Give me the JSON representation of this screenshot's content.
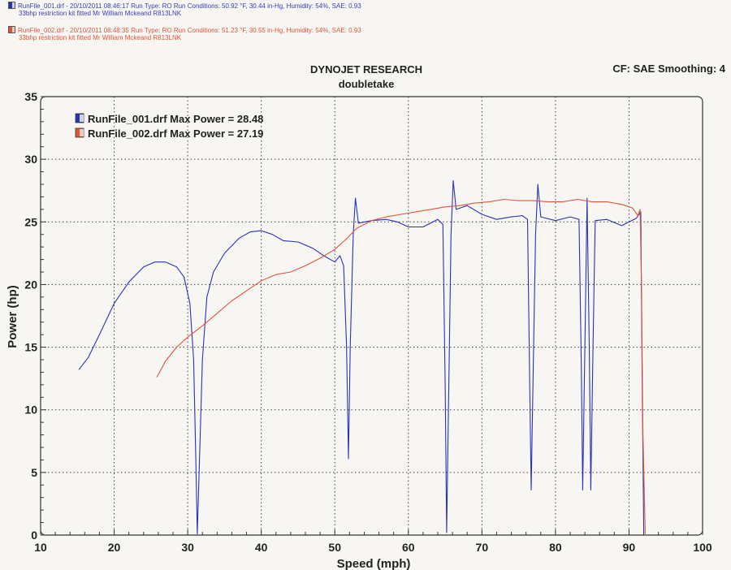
{
  "runs": [
    {
      "line1": "RunFile_001.drf - 20/10/2011 08:46:17  Run Type: RO  Run Conditions: 50.92 °F, 30.44 in-Hg,  Humidity:  54%, SAE: 0.93",
      "line2": "33bhp restriction kit fitted Mr William Mckeand R813LNK",
      "color": "#3a40b8"
    },
    {
      "line1": "RunFile_002.drf - 20/10/2011 08:48:35  Run Type: RO  Run Conditions: 51.23 °F, 30.55 in-Hg,  Humidity:  54%, SAE: 0.93",
      "line2": "33bhp restriction kit fitted Mr William Mckeand R813LNK",
      "color": "#e0553a"
    }
  ],
  "chart_data": {
    "type": "line",
    "title": "DYNOJET RESEARCH",
    "subtitle": "doubletake",
    "corner_note": "CF: SAE  Smoothing: 4",
    "xlabel": "Speed (mph)",
    "ylabel": "Power (hp)",
    "xlim": [
      10,
      100
    ],
    "ylim": [
      0,
      35
    ],
    "x_ticks": [
      "10",
      "20",
      "30",
      "40",
      "50",
      "60",
      "70",
      "80",
      "90",
      "100"
    ],
    "y_ticks": [
      "0",
      "5",
      "10",
      "15",
      "20",
      "25",
      "30",
      "35"
    ],
    "grid": true,
    "legend_position": "top-left",
    "series": [
      {
        "name": "RunFile_001.drf Max Power = 28.48",
        "color": "#2a32b8",
        "points": [
          [
            15.2,
            13.2
          ],
          [
            16.5,
            14.2
          ],
          [
            18,
            16
          ],
          [
            20,
            18.5
          ],
          [
            22,
            20.2
          ],
          [
            24,
            21.4
          ],
          [
            25.5,
            21.8
          ],
          [
            27,
            21.8
          ],
          [
            28.5,
            21.4
          ],
          [
            29.5,
            20.6
          ],
          [
            30.3,
            18.5
          ],
          [
            30.8,
            14
          ],
          [
            31.1,
            6
          ],
          [
            31.3,
            0.1
          ],
          [
            31.6,
            6
          ],
          [
            32,
            14
          ],
          [
            32.6,
            19
          ],
          [
            33.5,
            21
          ],
          [
            35,
            22.5
          ],
          [
            37,
            23.7
          ],
          [
            38.5,
            24.2
          ],
          [
            40,
            24.3
          ],
          [
            41.5,
            24
          ],
          [
            43,
            23.5
          ],
          [
            45,
            23.4
          ],
          [
            47,
            22.9
          ],
          [
            48.5,
            22.3
          ],
          [
            50,
            21.8
          ],
          [
            50.7,
            22.3
          ],
          [
            51.2,
            21.5
          ],
          [
            51.6,
            15
          ],
          [
            51.85,
            6.1
          ],
          [
            52.1,
            15
          ],
          [
            52.5,
            24
          ],
          [
            52.8,
            26.9
          ],
          [
            53.2,
            24.9
          ],
          [
            55,
            25.1
          ],
          [
            57,
            25.2
          ],
          [
            58.5,
            25
          ],
          [
            60,
            24.6
          ],
          [
            62,
            24.6
          ],
          [
            64,
            25.2
          ],
          [
            64.7,
            24.8
          ],
          [
            65,
            12
          ],
          [
            65.2,
            0.2
          ],
          [
            65.5,
            12
          ],
          [
            65.8,
            24
          ],
          [
            66.1,
            28.3
          ],
          [
            66.5,
            26
          ],
          [
            68,
            26.3
          ],
          [
            70,
            25.6
          ],
          [
            72,
            25.2
          ],
          [
            74,
            25.4
          ],
          [
            75.5,
            25.5
          ],
          [
            76.2,
            25.2
          ],
          [
            76.5,
            12
          ],
          [
            76.7,
            3.6
          ],
          [
            77,
            14
          ],
          [
            77.3,
            24
          ],
          [
            77.6,
            28
          ],
          [
            78,
            25.4
          ],
          [
            80,
            25.1
          ],
          [
            82,
            25.4
          ],
          [
            83.2,
            25.2
          ],
          [
            83.5,
            14
          ],
          [
            83.7,
            3.6
          ],
          [
            84,
            15
          ],
          [
            84.3,
            26.9
          ],
          [
            84.6,
            15
          ],
          [
            84.8,
            3.6
          ],
          [
            85.1,
            15
          ],
          [
            85.4,
            25.1
          ],
          [
            87,
            25.2
          ],
          [
            89,
            24.7
          ],
          [
            91,
            25.3
          ],
          [
            91.6,
            25.8
          ],
          [
            91.8,
            12
          ],
          [
            92,
            0.1
          ]
        ]
      },
      {
        "name": "RunFile_002.drf Max Power = 27.19",
        "color": "#e0553a",
        "points": [
          [
            25.8,
            12.6
          ],
          [
            27,
            13.9
          ],
          [
            28.5,
            15
          ],
          [
            30,
            15.8
          ],
          [
            32,
            16.7
          ],
          [
            34,
            17.7
          ],
          [
            36,
            18.7
          ],
          [
            38,
            19.5
          ],
          [
            40,
            20.3
          ],
          [
            42,
            20.8
          ],
          [
            44,
            21
          ],
          [
            46,
            21.5
          ],
          [
            48,
            22.1
          ],
          [
            50,
            22.8
          ],
          [
            51.5,
            23.6
          ],
          [
            53,
            24.5
          ],
          [
            55,
            25.1
          ],
          [
            57,
            25.4
          ],
          [
            59,
            25.6
          ],
          [
            61,
            25.8
          ],
          [
            63,
            26
          ],
          [
            65,
            26.2
          ],
          [
            67,
            26.3
          ],
          [
            69,
            26.5
          ],
          [
            71,
            26.6
          ],
          [
            73,
            26.8
          ],
          [
            75,
            26.7
          ],
          [
            77,
            26.7
          ],
          [
            79,
            26.6
          ],
          [
            81,
            26.6
          ],
          [
            83,
            26.8
          ],
          [
            85,
            26.6
          ],
          [
            87,
            26.6
          ],
          [
            89,
            26.4
          ],
          [
            90.5,
            26.1
          ],
          [
            91.2,
            25.5
          ],
          [
            91.5,
            26
          ],
          [
            91.7,
            20
          ],
          [
            91.9,
            8
          ],
          [
            92.2,
            0.1
          ]
        ]
      }
    ]
  }
}
